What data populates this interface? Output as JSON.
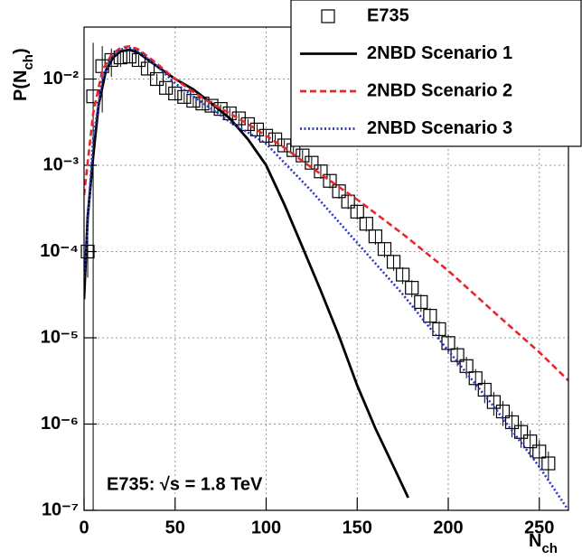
{
  "chart_data": {
    "type": "line",
    "log_y": true,
    "grid": true,
    "legend": "upper right",
    "xlabel": {
      "text": "N",
      "sub": "ch"
    },
    "ylabel": {
      "text": "P(N",
      "sub": "ch",
      "end": ")"
    },
    "annotation": "E735: √s = 1.8 TeV",
    "xlim": [
      0,
      266
    ],
    "xticks": [
      0,
      50,
      100,
      150,
      200,
      250
    ],
    "ylim": [
      1e-07,
      0.04
    ],
    "yticks": [
      {
        "value": 1e-07,
        "label": "10⁻⁷"
      },
      {
        "value": 1e-06,
        "label": "10⁻⁶"
      },
      {
        "value": 1e-05,
        "label": "10⁻⁵"
      },
      {
        "value": 0.0001,
        "label": "10⁻⁴"
      },
      {
        "value": 0.001,
        "label": "10⁻³"
      },
      {
        "value": 0.01,
        "label": "10⁻²"
      }
    ],
    "series": [
      {
        "name": "E735",
        "kind": "points",
        "color": "#000000",
        "x": [
          2,
          5,
          10,
          15,
          20,
          25,
          30,
          35,
          40,
          45,
          50,
          55,
          60,
          65,
          70,
          75,
          80,
          85,
          90,
          95,
          100,
          105,
          110,
          115,
          120,
          125,
          130,
          135,
          140,
          145,
          150,
          155,
          160,
          165,
          170,
          175,
          180,
          185,
          190,
          195,
          200,
          205,
          210,
          215,
          220,
          225,
          230,
          235,
          240,
          245,
          250,
          255
        ],
        "values": [
          0.0001,
          0.0063,
          0.0141,
          0.0166,
          0.0178,
          0.0182,
          0.0166,
          0.0132,
          0.01,
          0.0079,
          0.0068,
          0.0062,
          0.0056,
          0.0052,
          0.0049,
          0.0045,
          0.004,
          0.0035,
          0.003,
          0.0026,
          0.0022,
          0.002,
          0.0017,
          0.0015,
          0.0013,
          0.00107,
          0.00085,
          0.00066,
          0.0005,
          0.00038,
          0.00029,
          0.00021,
          0.00015,
          0.000107,
          7.6e-05,
          5.4e-05,
          3.8e-05,
          2.6e-05,
          1.8e-05,
          1.26e-05,
          8.7e-06,
          6.3e-06,
          4.7e-06,
          3.4e-06,
          2.5e-06,
          1.8e-06,
          1.4e-06,
          1.05e-06,
          8.1e-07,
          6.3e-07,
          4.8e-07,
          3.5e-07
        ],
        "errors": [
          5e-05,
          0.02,
          0.01,
          0.006,
          0.004,
          0.003,
          0.0025,
          0.002,
          0.0015,
          0.0012,
          0.001,
          0.0009,
          0.0008,
          0.0007,
          0.0007,
          0.0006,
          0.0006,
          0.0005,
          0.00045,
          0.0004,
          0.00035,
          0.0003,
          0.00027,
          0.00024,
          0.00021,
          0.00018,
          0.00015,
          0.00012,
          9e-05,
          7e-05,
          5.5e-05,
          4e-05,
          3e-05,
          2.2e-05,
          1.6e-05,
          1.2e-05,
          8.5e-06,
          6e-06,
          4.2e-06,
          3e-06,
          2.2e-06,
          1.6e-06,
          1.3e-06,
          9.5e-07,
          7.5e-07,
          5.5e-07,
          4.5e-07,
          3.5e-07,
          2.8e-07,
          2.2e-07,
          1.7e-07,
          1.3e-07
        ]
      },
      {
        "name": "2NBD Scenario 1",
        "kind": "line",
        "dash": "solid",
        "color": "#000000",
        "x": [
          0,
          2,
          5,
          8,
          12,
          16,
          20,
          25,
          30,
          40,
          50,
          60,
          70,
          80,
          90,
          100,
          110,
          120,
          130,
          140,
          150,
          160,
          170,
          178
        ],
        "values": [
          2.8e-05,
          0.00025,
          0.00126,
          0.005,
          0.0126,
          0.0178,
          0.0209,
          0.0219,
          0.02,
          0.0141,
          0.01,
          0.0076,
          0.0052,
          0.0035,
          0.002,
          0.001,
          0.00035,
          0.000112,
          3.5e-05,
          1.05e-05,
          2.8e-06,
          8.9e-07,
          3.2e-07,
          1.4e-07
        ]
      },
      {
        "name": "2NBD Scenario 2",
        "kind": "line",
        "dash": "dashed",
        "color": "#e8262b",
        "x": [
          0,
          5,
          10,
          15,
          20,
          25,
          30,
          40,
          50,
          60,
          70,
          80,
          90,
          100,
          110,
          120,
          130,
          140,
          150,
          175,
          200,
          225,
          250,
          266
        ],
        "values": [
          0.00045,
          0.004,
          0.0126,
          0.019,
          0.023,
          0.024,
          0.022,
          0.0151,
          0.01,
          0.0071,
          0.0052,
          0.004,
          0.003,
          0.0022,
          0.0016,
          0.00112,
          0.00079,
          0.00056,
          0.0004,
          0.00016,
          6e-05,
          2e-05,
          6.8e-06,
          3.2e-06
        ]
      },
      {
        "name": "2NBD Scenario 3",
        "kind": "line",
        "dash": "dotted",
        "color": "#2b35c9",
        "x": [
          0,
          5,
          10,
          15,
          20,
          25,
          30,
          40,
          50,
          60,
          70,
          80,
          90,
          100,
          125,
          150,
          175,
          200,
          225,
          250,
          266
        ],
        "values": [
          5e-05,
          0.002,
          0.01,
          0.0178,
          0.022,
          0.023,
          0.021,
          0.0141,
          0.0089,
          0.0063,
          0.0045,
          0.0032,
          0.0024,
          0.00178,
          0.0005,
          0.000126,
          3.2e-05,
          7.1e-06,
          1.6e-06,
          3.2e-07,
          1e-07
        ]
      }
    ]
  }
}
